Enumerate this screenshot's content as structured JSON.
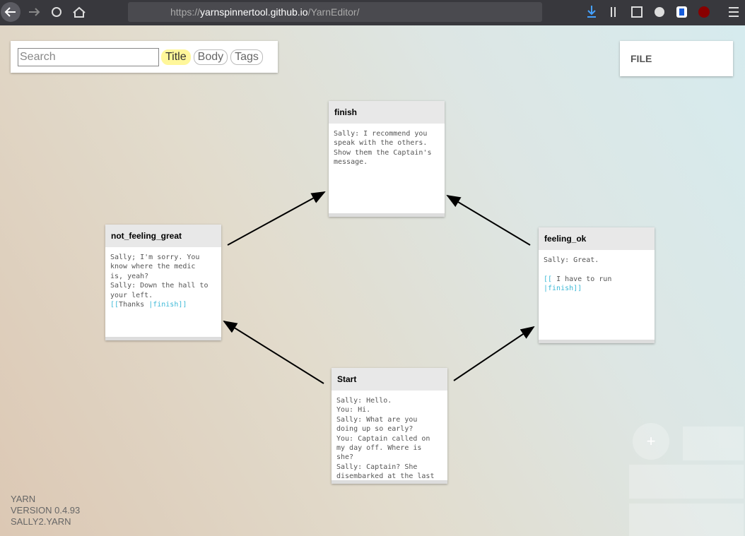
{
  "browser": {
    "url_scheme": "https://",
    "url_host": "yarnspinnertool.github.io",
    "url_path": "/YarnEditor/"
  },
  "search": {
    "placeholder": "Search",
    "filters": [
      "Title",
      "Body",
      "Tags"
    ]
  },
  "file_menu": "FILE",
  "nodes": [
    {
      "title": "finish",
      "body": [
        "Sally: I recommend you",
        "speak with the others.",
        "Show them the Captain's",
        "message."
      ]
    },
    {
      "title": "not_feeling_great",
      "body": [
        "Sally; I'm sorry. You",
        "know where the medic",
        "is, yeah?",
        "Sally: Down the hall to",
        "your left.",
        [
          "[[",
          "Thanks ",
          "|finish]]"
        ]
      ]
    },
    {
      "title": "feeling_ok",
      "body": [
        "Sally: Great.",
        "",
        [
          "[[",
          " I have to run"
        ],
        [
          "|finish]]"
        ]
      ]
    },
    {
      "title": "Start",
      "body": [
        "Sally: Hello.",
        "You: Hi.",
        "Sally: What are you",
        "doing up so early?",
        "You: Captain called on",
        "my day off. Where is",
        "she?",
        "Sally: Captain? She",
        "disembarked at the last"
      ]
    }
  ],
  "zoom_button": "+",
  "footer": [
    "YARN",
    "VERSION 0.4.93",
    "SALLY2.YARN"
  ]
}
